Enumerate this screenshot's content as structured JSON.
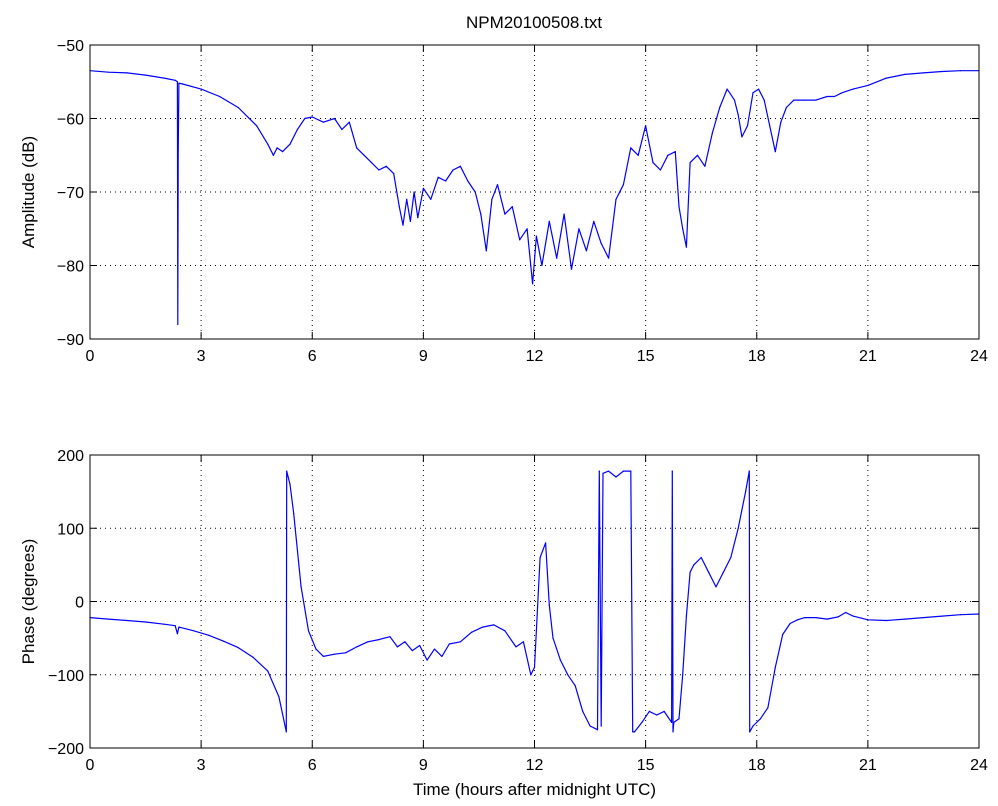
{
  "figure": {
    "title": "NPM20100508.txt",
    "line_color": "#0000ff"
  },
  "chart_data": [
    {
      "type": "line",
      "title": "NPM20100508.txt",
      "xlabel": "",
      "ylabel": "Amplitude (dB)",
      "xlim": [
        0,
        24
      ],
      "ylim": [
        -90,
        -50
      ],
      "xticks": [
        "0",
        "3",
        "6",
        "9",
        "12",
        "15",
        "18",
        "21",
        "24"
      ],
      "yticks": [
        "−90",
        "−80",
        "−70",
        "−60",
        "−50"
      ],
      "ytick_values": [
        -90,
        -80,
        -70,
        -60,
        -50
      ],
      "grid": true,
      "series": [
        {
          "x": [
            0,
            0.5,
            1.0,
            1.5,
            2.0,
            2.3,
            2.36,
            2.37,
            2.38,
            2.4,
            2.5,
            3.0,
            3.5,
            4.0,
            4.5,
            4.8,
            4.95,
            5.05,
            5.2,
            5.4,
            5.6,
            5.8,
            6.0,
            6.3,
            6.6,
            6.8,
            7.0,
            7.2,
            7.4,
            7.6,
            7.8,
            8.0,
            8.2,
            8.35,
            8.45,
            8.55,
            8.65,
            8.75,
            8.85,
            9.0,
            9.2,
            9.4,
            9.6,
            9.8,
            10.0,
            10.2,
            10.4,
            10.55,
            10.7,
            10.85,
            11.0,
            11.2,
            11.4,
            11.6,
            11.8,
            11.95,
            12.05,
            12.2,
            12.4,
            12.6,
            12.8,
            13.0,
            13.2,
            13.4,
            13.6,
            13.8,
            14.0,
            14.2,
            14.4,
            14.6,
            14.8,
            15.0,
            15.2,
            15.4,
            15.6,
            15.8,
            15.9,
            16.0,
            16.1,
            16.2,
            16.4,
            16.6,
            16.8,
            17.0,
            17.2,
            17.4,
            17.5,
            17.6,
            17.75,
            17.9,
            18.05,
            18.2,
            18.35,
            18.5,
            18.65,
            18.8,
            19.0,
            19.3,
            19.6,
            19.9,
            20.1,
            20.3,
            20.6,
            21.0,
            21.5,
            22.0,
            22.5,
            23.0,
            23.5,
            24.0
          ],
          "y": [
            -53.5,
            -53.7,
            -53.8,
            -54.1,
            -54.5,
            -54.8,
            -55,
            -88,
            -65,
            -55.2,
            -55.3,
            -56,
            -57,
            -58.5,
            -61,
            -63.5,
            -65,
            -64,
            -64.5,
            -63.5,
            -61.5,
            -60,
            -59.8,
            -60.5,
            -60,
            -61.5,
            -60.5,
            -64,
            -65,
            -66,
            -67,
            -66.5,
            -67.5,
            -72,
            -74.5,
            -71,
            -74,
            -70,
            -73.5,
            -69.5,
            -71,
            -68,
            -68.5,
            -67,
            -66.5,
            -68.5,
            -70,
            -73,
            -78,
            -71,
            -69,
            -73,
            -72,
            -76.5,
            -75,
            -82.5,
            -76,
            -80,
            -74,
            -79,
            -73,
            -80.5,
            -75,
            -78,
            -74,
            -77,
            -79,
            -71,
            -69,
            -64,
            -65,
            -61,
            -66,
            -67,
            -65,
            -64.5,
            -72,
            -75,
            -77.5,
            -66,
            -65,
            -66.5,
            -62,
            -58.5,
            -56,
            -57.5,
            -59.5,
            -62.5,
            -61,
            -56.5,
            -56,
            -57.5,
            -61,
            -64.5,
            -60.5,
            -58.5,
            -57.5,
            -57.5,
            -57.5,
            -57,
            -57,
            -56.5,
            -56,
            -55.5,
            -54.5,
            -54,
            -53.8,
            -53.6,
            -53.5,
            -53.5
          ]
        }
      ]
    },
    {
      "type": "line",
      "title": "",
      "xlabel": "Time (hours after midnight UTC)",
      "ylabel": "Phase (degrees)",
      "xlim": [
        0,
        24
      ],
      "ylim": [
        -200,
        200
      ],
      "xticks": [
        "0",
        "3",
        "6",
        "9",
        "12",
        "15",
        "18",
        "21",
        "24"
      ],
      "yticks": [
        "−200",
        "−100",
        "0",
        "100",
        "200"
      ],
      "ytick_values": [
        -200,
        -100,
        0,
        100,
        200
      ],
      "grid": true,
      "series": [
        {
          "x": [
            0,
            0.5,
            1.0,
            1.5,
            2.0,
            2.3,
            2.36,
            2.4,
            2.8,
            3.2,
            3.6,
            4.0,
            4.4,
            4.8,
            5.1,
            5.3,
            5.31,
            5.4,
            5.5,
            5.7,
            5.9,
            6.1,
            6.3,
            6.6,
            6.9,
            7.2,
            7.5,
            7.8,
            8.1,
            8.3,
            8.5,
            8.7,
            8.9,
            9.1,
            9.3,
            9.5,
            9.7,
            10.0,
            10.3,
            10.6,
            10.9,
            11.2,
            11.5,
            11.7,
            11.9,
            12.0,
            12.15,
            12.3,
            12.4,
            12.5,
            12.7,
            12.9,
            13.1,
            13.3,
            13.5,
            13.7,
            13.75,
            13.8,
            13.85,
            14.0,
            14.2,
            14.4,
            14.6,
            14.65,
            14.7,
            14.9,
            15.1,
            15.3,
            15.5,
            15.7,
            15.72,
            15.74,
            15.76,
            15.9,
            16.0,
            16.1,
            16.2,
            16.3,
            16.5,
            16.7,
            16.9,
            17.1,
            17.3,
            17.5,
            17.7,
            17.8,
            17.81,
            17.9,
            18.1,
            18.3,
            18.5,
            18.7,
            18.9,
            19.1,
            19.3,
            19.6,
            19.9,
            20.2,
            20.4,
            20.6,
            21.0,
            21.5,
            22.0,
            22.5,
            23.0,
            23.5,
            24.0
          ],
          "y": [
            -22,
            -24,
            -26,
            -28,
            -31,
            -33,
            -44,
            -35,
            -40,
            -46,
            -54,
            -63,
            -76,
            -95,
            -130,
            -178,
            178,
            160,
            120,
            20,
            -40,
            -65,
            -75,
            -72,
            -70,
            -62,
            -55,
            -52,
            -48,
            -62,
            -55,
            -67,
            -60,
            -80,
            -65,
            -75,
            -58,
            -55,
            -42,
            -35,
            -32,
            -40,
            -62,
            -55,
            -100,
            -90,
            60,
            80,
            -5,
            -50,
            -80,
            -100,
            -115,
            -150,
            -170,
            -175,
            178,
            -170,
            175,
            178,
            170,
            178,
            178,
            -178,
            -178,
            -165,
            -150,
            -155,
            -150,
            -165,
            178,
            -178,
            -165,
            -160,
            -100,
            -20,
            40,
            50,
            60,
            40,
            20,
            40,
            60,
            100,
            150,
            178,
            -178,
            -170,
            -160,
            -145,
            -90,
            -45,
            -30,
            -25,
            -22,
            -22,
            -24,
            -21,
            -15,
            -20,
            -25,
            -26,
            -24,
            -22,
            -20,
            -18,
            -17
          ]
        }
      ]
    }
  ]
}
